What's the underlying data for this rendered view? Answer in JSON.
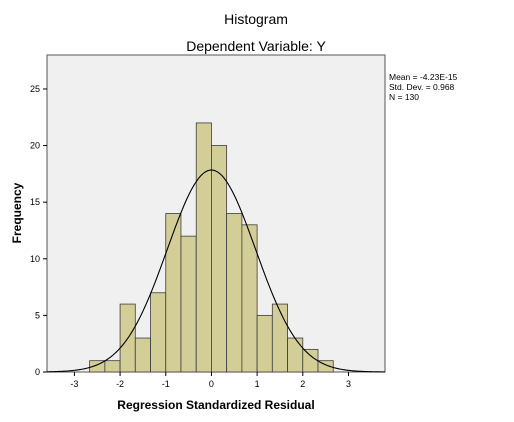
{
  "chart_data": {
    "type": "bar",
    "title": "Histogram",
    "subtitle": "Dependent Variable: Y",
    "xlabel": "Regression Standardized Residual",
    "ylabel": "Frequency",
    "xlim": [
      -3.6,
      3.8
    ],
    "ylim": [
      0,
      28
    ],
    "x_ticks": [
      "-3",
      "-2",
      "-1",
      "0",
      "1",
      "2",
      "3"
    ],
    "y_ticks": [
      "0",
      "5",
      "10",
      "15",
      "20",
      "25"
    ],
    "bin_width": 0.333,
    "bins": [
      {
        "x0": -2.667,
        "x1": -2.333,
        "count": 1
      },
      {
        "x0": -2.333,
        "x1": -2.0,
        "count": 1
      },
      {
        "x0": -2.0,
        "x1": -1.667,
        "count": 6
      },
      {
        "x0": -1.667,
        "x1": -1.333,
        "count": 3
      },
      {
        "x0": -1.333,
        "x1": -1.0,
        "count": 7
      },
      {
        "x0": -1.0,
        "x1": -0.667,
        "count": 14
      },
      {
        "x0": -0.667,
        "x1": -0.333,
        "count": 12
      },
      {
        "x0": -0.333,
        "x1": 0.0,
        "count": 22
      },
      {
        "x0": 0.0,
        "x1": 0.333,
        "count": 20
      },
      {
        "x0": 0.333,
        "x1": 0.667,
        "count": 14
      },
      {
        "x0": 0.667,
        "x1": 1.0,
        "count": 13
      },
      {
        "x0": 1.0,
        "x1": 1.333,
        "count": 5
      },
      {
        "x0": 1.333,
        "x1": 1.667,
        "count": 6
      },
      {
        "x0": 1.667,
        "x1": 2.0,
        "count": 3
      },
      {
        "x0": 2.0,
        "x1": 2.333,
        "count": 2
      },
      {
        "x0": 2.333,
        "x1": 2.667,
        "count": 1
      }
    ],
    "normal_curve": {
      "mean": 0,
      "sd": 0.968,
      "n": 130
    },
    "stats": {
      "mean": "Mean = -4.23E-15",
      "sd": "Std. Dev. = 0.968",
      "n": "N = 130"
    },
    "grid": false,
    "colors": {
      "plot_bg": "#f0f0f0",
      "bar_fill": "#d3ce97",
      "bar_stroke": "#3c3c3c",
      "curve": "#000000"
    }
  }
}
